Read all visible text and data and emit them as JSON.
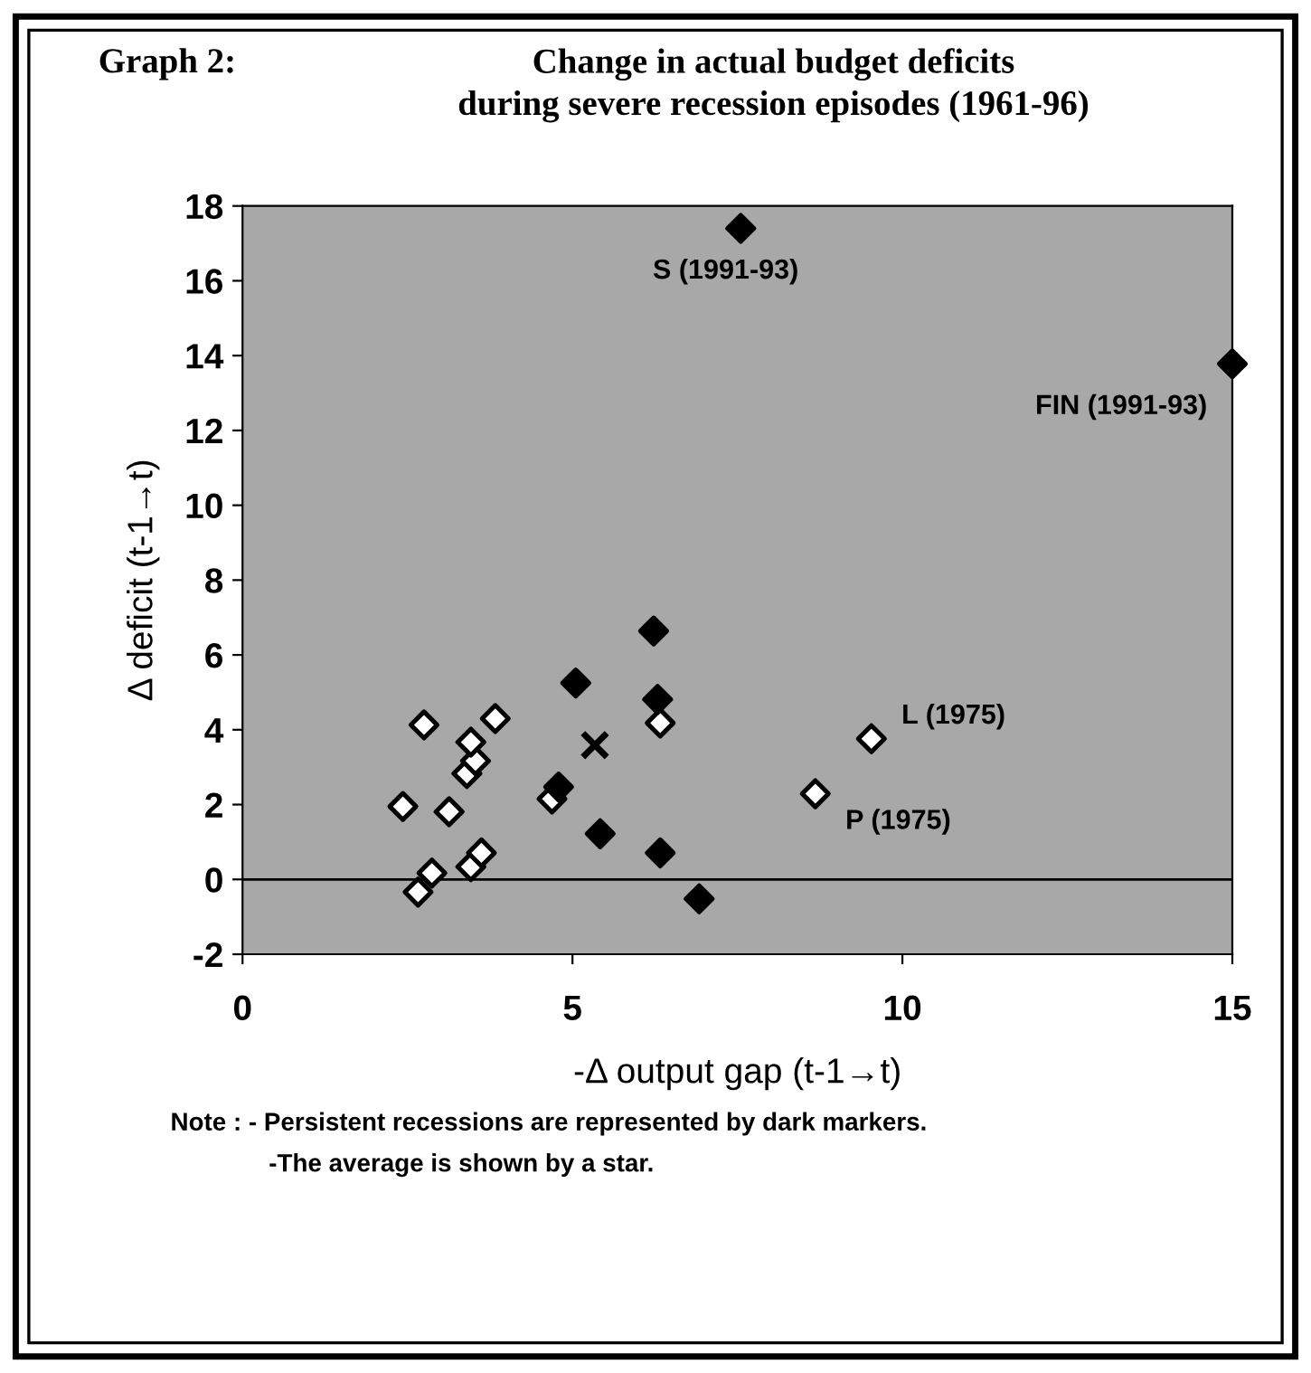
{
  "chart_data": {
    "type": "scatter",
    "title": "Change in actual budget deficits\nduring severe recession episodes (1961-96)",
    "xlabel": "-Δ output gap (t-1→t)",
    "ylabel": "Δ deficit (t-1→t)",
    "xlim": [
      0,
      15
    ],
    "ylim": [
      -2,
      18
    ],
    "xticks": [
      0,
      5,
      10,
      15
    ],
    "yticks": [
      -2,
      0,
      2,
      4,
      6,
      8,
      10,
      12,
      14,
      16,
      18
    ],
    "grid": false,
    "legend": false,
    "marker": "diamond",
    "series": [
      {
        "color": "#ffffff",
        "x": [
          2.75,
          2.43,
          2.66,
          2.87,
          3.13,
          3.4,
          3.53,
          3.46,
          3.46,
          3.62,
          3.83,
          4.69,
          6.33,
          8.68,
          9.53
        ],
        "values": [
          4.13,
          1.95,
          -0.34,
          0.17,
          1.81,
          2.83,
          3.17,
          3.67,
          0.34,
          0.71,
          4.3,
          2.15,
          4.18,
          2.29,
          3.76
        ]
      },
      {
        "color": "#000000",
        "x": [
          7.55,
          15.0,
          6.23,
          5.05,
          6.29,
          4.79,
          5.42,
          6.33,
          6.92
        ],
        "values": [
          17.4,
          13.78,
          6.64,
          5.25,
          4.81,
          2.47,
          1.22,
          0.71,
          -0.52
        ]
      },
      {
        "color": "#000000",
        "marker": "cross",
        "x": [
          5.34
        ],
        "values": [
          3.59
        ]
      }
    ],
    "ref_lines": [
      {
        "axis": "y",
        "value": 0,
        "color": "#000000"
      }
    ],
    "annotations": [
      "Graph 2:",
      {
        "text": "S (1991-93)",
        "x": 7.55,
        "y": 17.4
      },
      {
        "text": "FIN (1991-93)",
        "x": 15.0,
        "y": 13.78
      },
      {
        "text": "L (1975)",
        "x": 9.53,
        "y": 3.76
      },
      {
        "text": "P (1975)",
        "x": 8.68,
        "y": 2.29
      },
      "Note : - Persistent recessions are represented by dark markers.",
      "-The average is shown by a star."
    ]
  }
}
